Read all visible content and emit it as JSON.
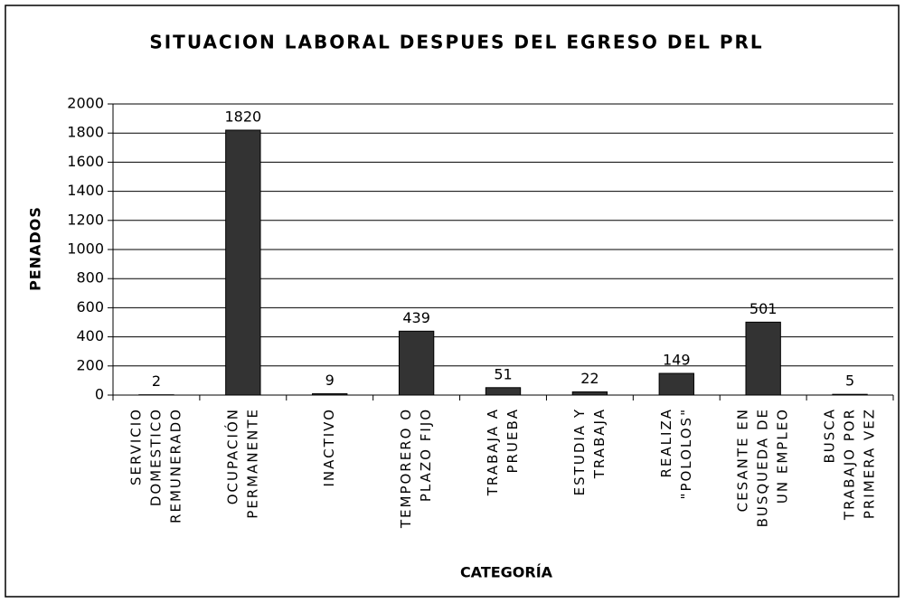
{
  "chart_data": {
    "type": "bar",
    "title": "SITUACION LABORAL DESPUES DEL EGRESO DEL PRL",
    "x_label": "CATEGORÍA",
    "y_label": "PENADOS",
    "categories": [
      [
        "SERVICIO",
        "DOMESTICO",
        "REMUNERADO"
      ],
      [
        "OCUPACIÓN",
        "PERMANENTE"
      ],
      [
        "INACTIVO"
      ],
      [
        "TEMPORERO O",
        "PLAZO FIJO"
      ],
      [
        "TRABAJA A",
        "PRUEBA"
      ],
      [
        "ESTUDIA Y",
        "TRABAJA"
      ],
      [
        "REALIZA",
        "\"POLOLOS\""
      ],
      [
        "CESANTE EN",
        "BUSQUEDA DE",
        "UN EMPLEO"
      ],
      [
        "BUSCA",
        "TRABAJO POR",
        "PRIMERA VEZ"
      ]
    ],
    "values": [
      2,
      1820,
      9,
      439,
      51,
      22,
      149,
      501,
      5
    ],
    "color": "#333333",
    "ylim": [
      0,
      2000
    ],
    "yticks": [
      0,
      200,
      400,
      600,
      800,
      1000,
      1200,
      1400,
      1600,
      1800,
      2000
    ],
    "grid": true
  }
}
